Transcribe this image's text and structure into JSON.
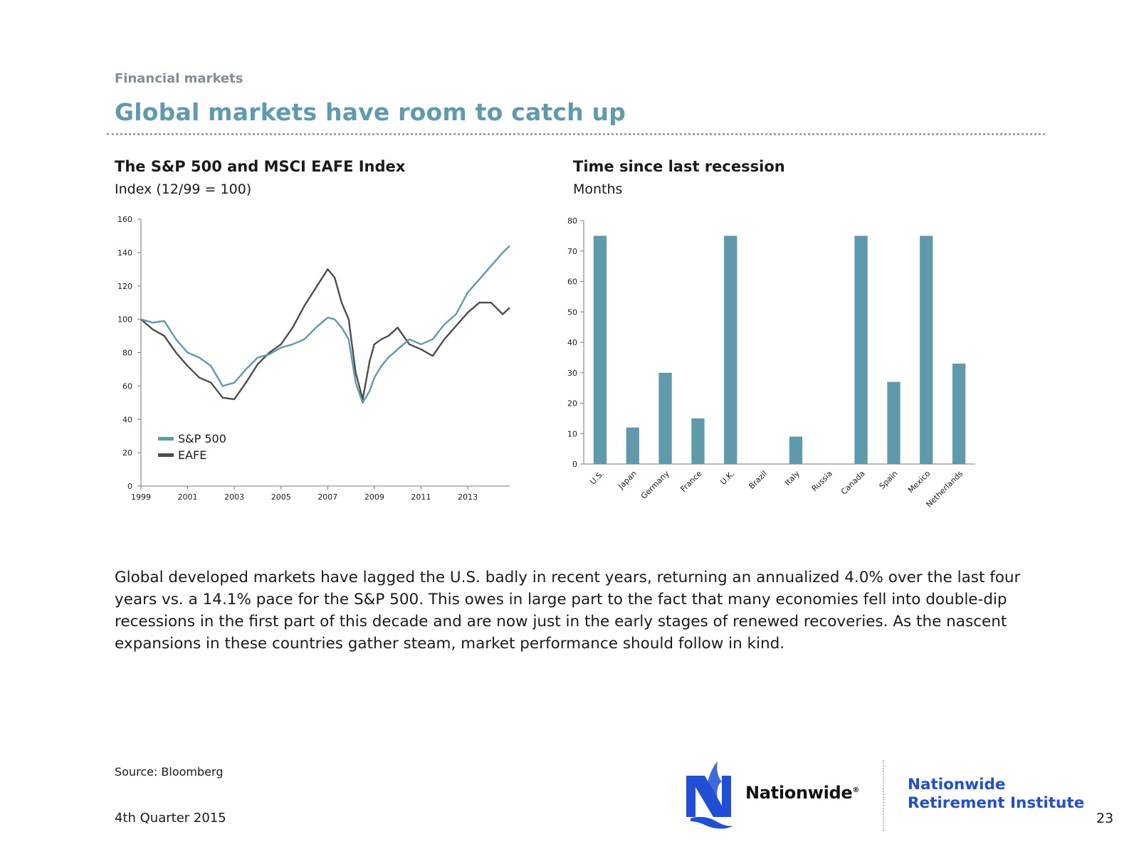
{
  "header": {
    "section_label": "Financial markets",
    "title": "Global markets have room to catch up"
  },
  "colors": {
    "accent_teal": "#5e9aab",
    "eafe_gray": "#4d4d4d",
    "title_teal": "#5f9bae",
    "brand_blue": "#1f4fd6"
  },
  "left_chart_header": {
    "title": "The S&P 500 and MSCI EAFE Index",
    "subtitle": "Index (12/99 = 100)"
  },
  "right_chart_header": {
    "title": "Time since last recession",
    "subtitle": "Months"
  },
  "chart_data": [
    {
      "type": "line",
      "title": "The S&P 500 and MSCI EAFE Index",
      "ylabel": "Index (12/99 = 100)",
      "xlim": [
        1999,
        2014.8
      ],
      "ylim": [
        0,
        160
      ],
      "x_ticks": [
        "1999",
        "2001",
        "2003",
        "2005",
        "2007",
        "2009",
        "2011",
        "2013"
      ],
      "y_ticks": [
        "0",
        "20",
        "40",
        "60",
        "80",
        "100",
        "120",
        "140",
        "160"
      ],
      "legend_position": "bottom-left",
      "grid": false,
      "x": [
        1999.0,
        1999.5,
        2000.0,
        2000.5,
        2001.0,
        2001.5,
        2002.0,
        2002.5,
        2003.0,
        2003.5,
        2004.0,
        2004.5,
        2005.0,
        2005.5,
        2006.0,
        2006.5,
        2007.0,
        2007.3,
        2007.6,
        2007.9,
        2008.2,
        2008.5,
        2008.8,
        2009.0,
        2009.3,
        2009.6,
        2010.0,
        2010.5,
        2011.0,
        2011.5,
        2012.0,
        2012.5,
        2013.0,
        2013.5,
        2014.0,
        2014.5,
        2014.8
      ],
      "series": [
        {
          "name": "S&P 500",
          "values": [
            100,
            98,
            99,
            88,
            80,
            77,
            72,
            60,
            62,
            70,
            77,
            79,
            83,
            85,
            88,
            95,
            101,
            100,
            95,
            88,
            62,
            50,
            57,
            65,
            72,
            77,
            82,
            88,
            85,
            88,
            97,
            103,
            116,
            124,
            132,
            140,
            144
          ]
        },
        {
          "name": "EAFE",
          "values": [
            100,
            94,
            90,
            80,
            72,
            65,
            62,
            53,
            52,
            62,
            73,
            80,
            85,
            95,
            108,
            119,
            130,
            125,
            110,
            100,
            68,
            52,
            75,
            85,
            88,
            90,
            95,
            85,
            82,
            78,
            88,
            96,
            104,
            110,
            110,
            103,
            107
          ]
        }
      ]
    },
    {
      "type": "bar",
      "title": "Time since last recession",
      "ylabel": "Months",
      "categories": [
        "U.S.",
        "Japan",
        "Germany",
        "France",
        "U.K.",
        "Brazil",
        "Italy",
        "Russia",
        "Canada",
        "Spain",
        "Mexico",
        "Netherlands"
      ],
      "values": [
        75,
        12,
        30,
        15,
        75,
        0,
        9,
        0,
        75,
        27,
        75,
        33
      ],
      "ylim": [
        0,
        80
      ],
      "y_ticks": [
        "0",
        "10",
        "20",
        "30",
        "40",
        "50",
        "60",
        "70",
        "80"
      ],
      "grid": false
    }
  ],
  "body_text": "Global developed markets have lagged the U.S. badly in recent years, returning an annualized 4.0% over the last four years vs. a 14.1% pace for the S&P 500. This owes in large part to the fact that many economies fell into double-dip recessions in the first part of this decade and are now just in the early stages of renewed recoveries. As the nascent expansions in these countries gather steam, market performance should follow in kind.",
  "footer": {
    "source": "Source: Bloomberg",
    "date": "4th Quarter 2015",
    "page_number": "23",
    "brand": "Nationwide",
    "brand_mark": "®",
    "institute_line1": "Nationwide",
    "institute_line2": "Retirement Institute"
  }
}
